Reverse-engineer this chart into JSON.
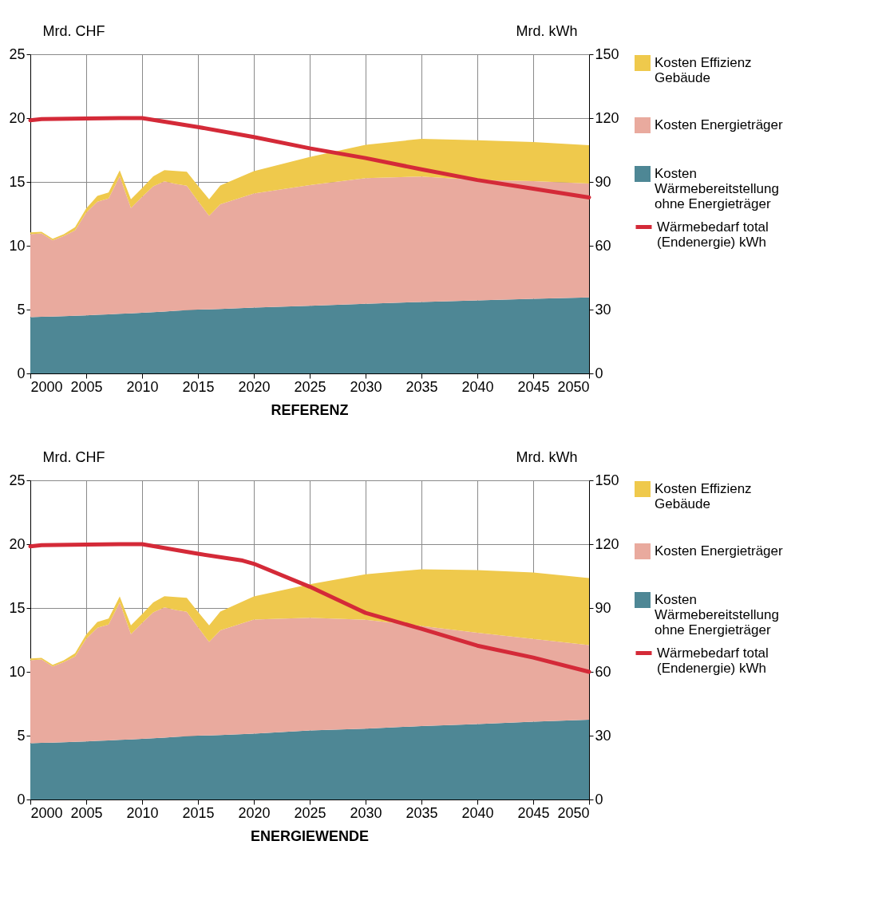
{
  "chart_data": [
    {
      "type": "area",
      "title": "REFERENZ",
      "ylabel": "Mrd. CHF",
      "y2label": "Mrd. kWh",
      "stacked": true,
      "grid": true,
      "legend": "right",
      "x": [
        2000,
        2001,
        2002,
        2003,
        2004,
        2005,
        2006,
        2007,
        2008,
        2009,
        2010,
        2011,
        2012,
        2013,
        2014,
        2015,
        2016,
        2017,
        2020,
        2025,
        2030,
        2035,
        2040,
        2045,
        2050
      ],
      "xlim": [
        2000,
        2050
      ],
      "xticks": [
        2000,
        2005,
        2010,
        2015,
        2020,
        2025,
        2030,
        2035,
        2040,
        2045,
        2050
      ],
      "ylim": [
        0,
        25
      ],
      "yticks": [
        0,
        5,
        10,
        15,
        20,
        25
      ],
      "y2lim": [
        0,
        150
      ],
      "y2ticks": [
        0,
        30,
        60,
        90,
        120,
        150
      ],
      "series": [
        {
          "name": "Kosten Wärmebereitstellung ohne Energieträger",
          "color": "#4e8795",
          "values": [
            4.4,
            4.43,
            4.46,
            4.49,
            4.52,
            4.55,
            4.59,
            4.63,
            4.67,
            4.71,
            4.75,
            4.8,
            4.85,
            4.9,
            4.95,
            5.0,
            5.02,
            5.05,
            5.15,
            5.3,
            5.45,
            5.6,
            5.72,
            5.85,
            5.95
          ]
        },
        {
          "name": "Kosten Energieträger",
          "color": "#e9aa9e",
          "values": [
            6.5,
            6.54,
            5.96,
            6.28,
            6.68,
            8.05,
            8.87,
            9.07,
            10.77,
            8.25,
            9.08,
            9.85,
            10.2,
            9.95,
            9.75,
            8.5,
            7.33,
            8.2,
            8.95,
            9.45,
            9.85,
            9.82,
            9.44,
            9.22,
            8.92
          ]
        },
        {
          "name": "Kosten Effizienz Gebäude",
          "color": "#efc94c",
          "values": [
            0.15,
            0.13,
            0.13,
            0.13,
            0.25,
            0.32,
            0.44,
            0.47,
            0.46,
            0.68,
            0.69,
            0.79,
            0.87,
            1.01,
            1.09,
            1.2,
            1.29,
            1.47,
            1.75,
            2.21,
            2.6,
            2.96,
            3.11,
            3.06,
            3.01
          ]
        },
        {
          "name": "Wärmebedarf total (Endenergie) kWh",
          "color": "#d42a38",
          "type": "line",
          "axis": "y2",
          "x": [
            2000,
            2001,
            2005,
            2008,
            2010,
            2015,
            2020,
            2025,
            2030,
            2035,
            2040,
            2045,
            2050
          ],
          "values": [
            119,
            119.5,
            119.8,
            120,
            120,
            115.8,
            111.1,
            105.8,
            101.2,
            95.9,
            90.9,
            86.8,
            82.7
          ]
        }
      ]
    },
    {
      "type": "area",
      "title": "ENERGIEWENDE",
      "ylabel": "Mrd. CHF",
      "y2label": "Mrd. kWh",
      "stacked": true,
      "grid": true,
      "legend": "right",
      "x": [
        2000,
        2001,
        2002,
        2003,
        2004,
        2005,
        2006,
        2007,
        2008,
        2009,
        2010,
        2011,
        2012,
        2013,
        2014,
        2015,
        2016,
        2017,
        2020,
        2025,
        2030,
        2035,
        2040,
        2045,
        2050
      ],
      "xlim": [
        2000,
        2050
      ],
      "xticks": [
        2000,
        2005,
        2010,
        2015,
        2020,
        2025,
        2030,
        2035,
        2040,
        2045,
        2050
      ],
      "ylim": [
        0,
        25
      ],
      "yticks": [
        0,
        5,
        10,
        15,
        20,
        25
      ],
      "y2lim": [
        0,
        150
      ],
      "y2ticks": [
        0,
        30,
        60,
        90,
        120,
        150
      ],
      "series": [
        {
          "name": "Kosten Wärmebereitstellung ohne Energieträger",
          "color": "#4e8795",
          "values": [
            4.4,
            4.43,
            4.46,
            4.49,
            4.52,
            4.55,
            4.59,
            4.63,
            4.67,
            4.71,
            4.75,
            4.8,
            4.85,
            4.9,
            4.95,
            5.0,
            5.02,
            5.05,
            5.15,
            5.4,
            5.55,
            5.75,
            5.9,
            6.1,
            6.25
          ]
        },
        {
          "name": "Kosten Energieträger",
          "color": "#e9aa9e",
          "values": [
            6.5,
            6.54,
            5.96,
            6.28,
            6.68,
            8.05,
            8.87,
            9.07,
            10.77,
            8.25,
            9.08,
            9.85,
            10.2,
            9.95,
            9.75,
            8.5,
            7.33,
            8.2,
            8.95,
            8.83,
            8.53,
            7.85,
            7.17,
            6.48,
            5.84
          ]
        },
        {
          "name": "Kosten Effizienz Gebäude",
          "color": "#efc94c",
          "values": [
            0.15,
            0.13,
            0.13,
            0.13,
            0.25,
            0.32,
            0.44,
            0.47,
            0.46,
            0.68,
            0.69,
            0.79,
            0.87,
            1.01,
            1.09,
            1.2,
            1.29,
            1.47,
            1.8,
            2.63,
            3.56,
            4.43,
            4.9,
            5.2,
            5.26
          ]
        },
        {
          "name": "Wärmebedarf total (Endenergie) kWh",
          "color": "#d42a38",
          "type": "line",
          "axis": "y2",
          "x": [
            2000,
            2001,
            2005,
            2008,
            2010,
            2015,
            2019,
            2020,
            2025,
            2030,
            2035,
            2040,
            2045,
            2050
          ],
          "values": [
            119,
            119.5,
            119.8,
            120,
            120,
            115.5,
            112.3,
            110.8,
            100,
            87.7,
            80.2,
            72.3,
            66.7,
            60
          ]
        }
      ]
    }
  ]
}
